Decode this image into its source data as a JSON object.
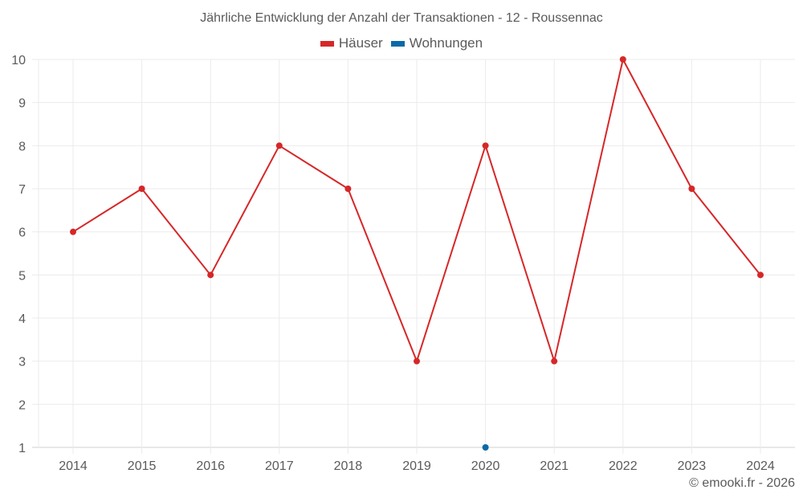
{
  "header": {
    "title": "Jährliche Entwicklung der Anzahl der Transaktionen - 12 - Roussennac"
  },
  "legend": [
    {
      "label": "Häuser",
      "color": "#d62728"
    },
    {
      "label": "Wohnungen",
      "color": "#0a6aa8"
    }
  ],
  "footer": {
    "credit": "© emooki.fr - 2026"
  },
  "chart_data": {
    "type": "line",
    "title": "Jährliche Entwicklung der Anzahl der Transaktionen - 12 - Roussennac",
    "xlabel": "",
    "ylabel": "",
    "x": [
      "2014",
      "2015",
      "2016",
      "2017",
      "2018",
      "2019",
      "2020",
      "2021",
      "2022",
      "2023",
      "2024"
    ],
    "yticks": [
      1,
      2,
      3,
      4,
      5,
      6,
      7,
      8,
      9,
      10
    ],
    "ylim": [
      1,
      10
    ],
    "grid": true,
    "legend_position": "top",
    "series": [
      {
        "name": "Häuser",
        "color": "#d62728",
        "values": [
          6,
          7,
          5,
          8,
          7,
          3,
          8,
          3,
          10,
          7,
          5
        ]
      },
      {
        "name": "Wohnungen",
        "color": "#0a6aa8",
        "values": [
          null,
          null,
          null,
          null,
          null,
          null,
          1,
          null,
          null,
          null,
          null
        ]
      }
    ]
  }
}
